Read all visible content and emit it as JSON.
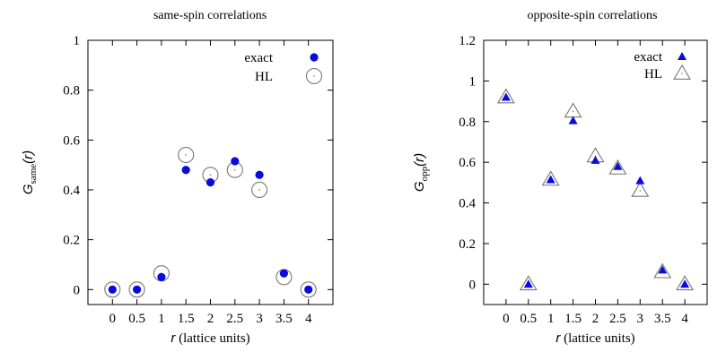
{
  "colors": {
    "exact": "#0a0adc",
    "hl": "#777777",
    "axis": "#000000"
  },
  "chart_data": [
    {
      "type": "scatter",
      "title": "same-spin correlations",
      "xlabel_var": "r",
      "xlabel_rest": " (lattice units)",
      "ylabel_var": "G",
      "ylabel_sub": "same",
      "ylabel_arg": "(r)",
      "xlim": [
        -0.5,
        4.5
      ],
      "ylim": [
        -0.06,
        1.0
      ],
      "xticks": [
        "0",
        "0.5",
        "1",
        "1.5",
        "2",
        "2.5",
        "3",
        "3.5",
        "4"
      ],
      "yticks": [
        "0",
        "0.2",
        "0.4",
        "0.6",
        "0.8",
        "1"
      ],
      "series": [
        {
          "name": "exact",
          "marker": "filled-circle",
          "x": [
            0,
            0.5,
            1,
            1.5,
            2,
            2.5,
            3,
            3.5,
            4
          ],
          "y": [
            0.0,
            0.0,
            0.05,
            0.48,
            0.43,
            0.515,
            0.46,
            0.065,
            0.0
          ]
        },
        {
          "name": "HL",
          "marker": "open-circle-dot",
          "x": [
            0,
            0.5,
            1,
            1.5,
            2,
            2.5,
            3,
            3.5,
            4
          ],
          "y": [
            0.0,
            0.0,
            0.065,
            0.54,
            0.46,
            0.48,
            0.4,
            0.05,
            0.0
          ]
        }
      ],
      "legend_position": "top-right"
    },
    {
      "type": "scatter",
      "title": "opposite-spin correlations",
      "xlabel_var": "r",
      "xlabel_rest": " (lattice units)",
      "ylabel_var": "G",
      "ylabel_sub": "opp",
      "ylabel_arg": "(r)",
      "xlim": [
        -0.5,
        4.5
      ],
      "ylim": [
        -0.1,
        1.2
      ],
      "xticks": [
        "0",
        "0.5",
        "1",
        "1.5",
        "2",
        "2.5",
        "3",
        "3.5",
        "4"
      ],
      "yticks": [
        "0",
        "0.2",
        "0.4",
        "0.6",
        "0.8",
        "1",
        "1.2"
      ],
      "series": [
        {
          "name": "exact",
          "marker": "filled-triangle",
          "x": [
            0,
            0.5,
            1,
            1.5,
            2,
            2.5,
            3,
            3.5,
            4
          ],
          "y": [
            0.92,
            0.0,
            0.515,
            0.805,
            0.61,
            0.58,
            0.51,
            0.07,
            0.0
          ]
        },
        {
          "name": "HL",
          "marker": "open-triangle-dot",
          "x": [
            0,
            0.5,
            1,
            1.5,
            2,
            2.5,
            3,
            3.5,
            4
          ],
          "y": [
            0.92,
            0.0,
            0.515,
            0.85,
            0.63,
            0.57,
            0.46,
            0.06,
            0.0
          ]
        }
      ],
      "legend_position": "top-right"
    }
  ]
}
